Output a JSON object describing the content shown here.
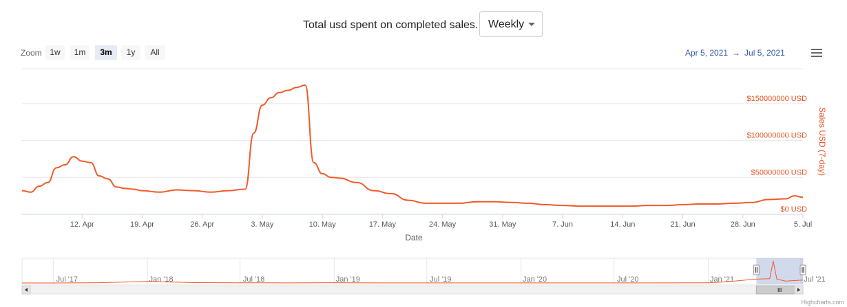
{
  "header": {
    "title": "Total usd spent on completed sales.",
    "period_select": {
      "value": "Weekly"
    }
  },
  "zoom": {
    "label": "Zoom",
    "buttons": [
      {
        "label": "1w",
        "active": false
      },
      {
        "label": "1m",
        "active": false
      },
      {
        "label": "3m",
        "active": true
      },
      {
        "label": "1y",
        "active": false
      },
      {
        "label": "All",
        "active": false
      }
    ]
  },
  "range": {
    "from": "Apr 5, 2021",
    "arrow": "→",
    "to": "Jul 5, 2021"
  },
  "credits": "Highcharts.com",
  "chart_data": {
    "type": "line",
    "xlabel": "Date",
    "ylabel": "Sales USD (7-day)",
    "ylim": [
      0,
      175000000
    ],
    "y_ticks": [
      "$0 USD",
      "$50000000 USD",
      "$100000000 USD",
      "$150000000 USD"
    ],
    "y_tick_values": [
      0,
      50000000,
      100000000,
      150000000
    ],
    "y_axis_side": "right",
    "x_ticks": [
      "12. Apr",
      "19. Apr",
      "26. Apr",
      "3. May",
      "10. May",
      "17. May",
      "24. May",
      "31. May",
      "7. Jun",
      "14. Jun",
      "21. Jun",
      "28. Jun",
      "5. Jul"
    ],
    "x_range": [
      "Apr 5, 2021",
      "Jul 5, 2021"
    ],
    "grid": true,
    "line_color": "#f05a28",
    "series": [
      {
        "x": [
          "2021-04-05",
          "2021-04-06",
          "2021-04-07",
          "2021-04-08",
          "2021-04-09",
          "2021-04-10",
          "2021-04-11",
          "2021-04-12",
          "2021-04-13",
          "2021-04-14",
          "2021-04-15",
          "2021-04-16",
          "2021-04-17",
          "2021-04-18",
          "2021-04-19",
          "2021-04-21",
          "2021-04-23",
          "2021-04-25",
          "2021-04-27",
          "2021-04-29",
          "2021-05-01",
          "2021-05-02",
          "2021-05-03",
          "2021-05-04",
          "2021-05-05",
          "2021-05-06",
          "2021-05-07",
          "2021-05-08",
          "2021-05-09",
          "2021-05-10",
          "2021-05-11",
          "2021-05-12",
          "2021-05-14",
          "2021-05-16",
          "2021-05-18",
          "2021-05-20",
          "2021-05-22",
          "2021-05-24",
          "2021-05-26",
          "2021-05-28",
          "2021-05-30",
          "2021-06-01",
          "2021-06-03",
          "2021-06-05",
          "2021-06-07",
          "2021-06-09",
          "2021-06-11",
          "2021-06-13",
          "2021-06-15",
          "2021-06-17",
          "2021-06-19",
          "2021-06-21",
          "2021-06-23",
          "2021-06-25",
          "2021-06-27",
          "2021-06-29",
          "2021-07-01",
          "2021-07-03",
          "2021-07-04",
          "2021-07-05"
        ],
        "values": [
          32000000,
          30000000,
          38000000,
          43000000,
          63000000,
          67000000,
          78000000,
          72000000,
          70000000,
          52000000,
          48000000,
          37000000,
          35000000,
          34000000,
          32000000,
          30000000,
          33000000,
          32000000,
          30000000,
          32000000,
          34000000,
          110000000,
          148000000,
          158000000,
          165000000,
          168000000,
          172000000,
          175000000,
          70000000,
          55000000,
          50000000,
          49000000,
          43000000,
          32000000,
          28000000,
          19000000,
          15000000,
          15000000,
          15000000,
          17000000,
          17000000,
          16000000,
          15000000,
          13000000,
          12000000,
          11000000,
          11000000,
          11000000,
          11000000,
          12000000,
          12000000,
          13000000,
          14000000,
          14000000,
          15000000,
          16000000,
          20000000,
          21000000,
          25000000,
          23000000
        ]
      }
    ],
    "navigator": {
      "x_ticks": [
        "Jul '17",
        "Jan '18",
        "Jul '18",
        "Jan '19",
        "Jul '19",
        "Jan '20",
        "Jul '20",
        "Jan '21",
        "Jul '21"
      ],
      "x": [
        "2017-05-01",
        "2017-07-01",
        "2017-10-01",
        "2018-01-01",
        "2018-04-01",
        "2018-07-01",
        "2018-10-01",
        "2019-01-01",
        "2019-04-01",
        "2019-07-01",
        "2019-10-01",
        "2020-01-01",
        "2020-04-01",
        "2020-07-01",
        "2020-10-01",
        "2021-01-01",
        "2021-02-01",
        "2021-03-01",
        "2021-04-01",
        "2021-05-01",
        "2021-05-08",
        "2021-05-15",
        "2021-06-01",
        "2021-07-05"
      ],
      "values": [
        0,
        0,
        2000000,
        12000000,
        3000000,
        1500000,
        1000000,
        2000000,
        1000000,
        800000,
        1000000,
        800000,
        1000000,
        800000,
        900000,
        1500000,
        8000000,
        18000000,
        30000000,
        34000000,
        175000000,
        30000000,
        15000000,
        23000000
      ],
      "selected_range": [
        "Apr 5, 2021",
        "Jul 5, 2021"
      ]
    }
  }
}
